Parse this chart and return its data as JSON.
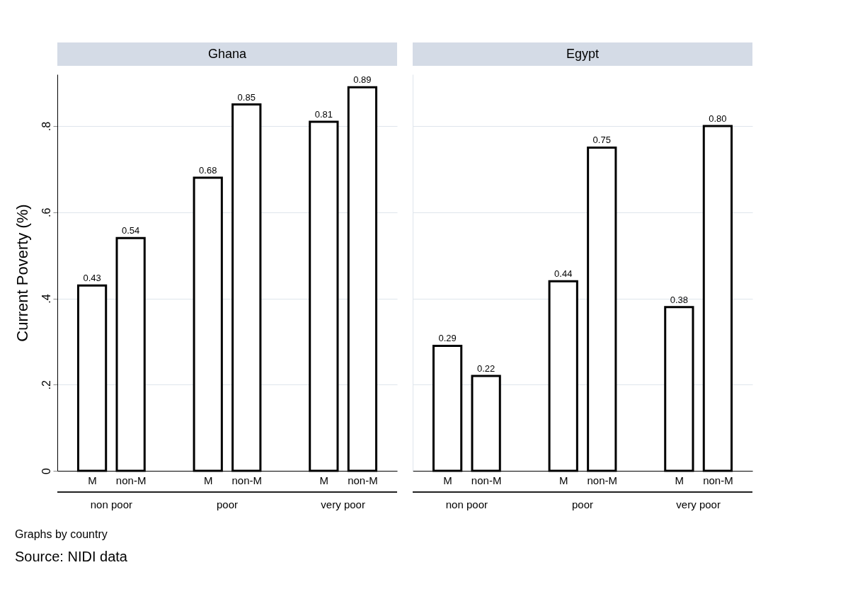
{
  "chart_data": [
    {
      "type": "bar",
      "title": "Ghana",
      "ylabel": "Current Poverty (%)",
      "categories": [
        "M",
        "non-M",
        "M",
        "non-M",
        "M",
        "non-M"
      ],
      "values": [
        0.43,
        0.54,
        0.68,
        0.85,
        0.81,
        0.89
      ],
      "value_labels": [
        "0.43",
        "0.54",
        "0.68",
        "0.85",
        "0.81",
        "0.89"
      ],
      "color": "#ffffff",
      "ylim": [
        0,
        0.92
      ],
      "yticks": [
        0,
        {
          "value": 0.2,
          "label": ".2"
        },
        {
          "value": 0.4,
          "label": ".4"
        },
        {
          "value": 0.6,
          "label": ".6"
        },
        {
          "value": 0.8,
          "label": ".8"
        }
      ],
      "grid": "y",
      "annotations": [
        "non poor",
        "poor",
        "very poor",
        "Graphs by country",
        "Source: NIDI data"
      ]
    },
    {
      "type": "bar",
      "title": "Egypt",
      "categories": [
        "M",
        "non-M",
        "M",
        "non-M",
        "M",
        "non-M"
      ],
      "values": [
        0.29,
        0.22,
        0.44,
        0.75,
        0.38,
        0.8
      ],
      "value_labels": [
        "0.29",
        "0.22",
        "0.44",
        "0.75",
        "0.38",
        "0.80"
      ],
      "color": "#ffffff",
      "ylim": [
        0,
        0.92
      ],
      "yticks": [
        {
          "value": 0,
          "label": null
        },
        {
          "value": 0.2,
          "label": null
        },
        {
          "value": 0.4,
          "label": null
        },
        {
          "value": 0.6,
          "label": null
        },
        {
          "value": 0.8,
          "label": null
        }
      ],
      "grid": "y",
      "tick_labels": "x",
      "annotations": [
        "non poor",
        "poor",
        "very poor"
      ]
    }
  ]
}
